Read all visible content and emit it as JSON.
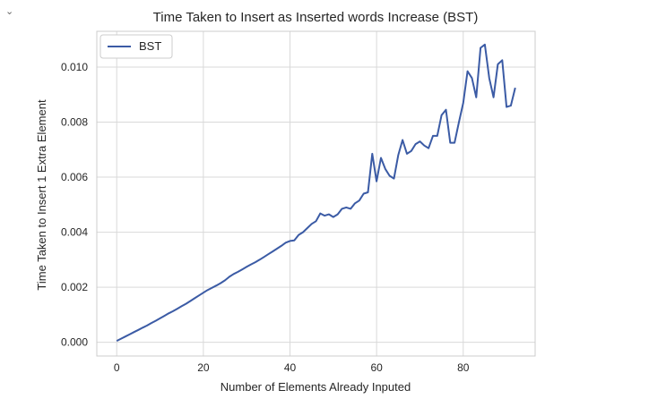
{
  "cell": {
    "collapse_icon": "chevron-down-icon",
    "collapse_glyph": "⌄"
  },
  "chart_data": {
    "type": "line",
    "title": "Time Taken to Insert as Inserted words Increase (BST)",
    "xlabel": "Number of Elements Already Inputed",
    "ylabel": "Time Taken to Insert 1 Extra Element",
    "xlim": [
      -4.6,
      96.6
    ],
    "ylim": [
      -0.0005,
      0.0113
    ],
    "xticks": [
      0,
      20,
      40,
      60,
      80
    ],
    "yticks": [
      0.0,
      0.002,
      0.004,
      0.006,
      0.008,
      0.01
    ],
    "xtick_labels": [
      "0",
      "20",
      "40",
      "60",
      "80"
    ],
    "ytick_labels": [
      "0.000",
      "0.002",
      "0.004",
      "0.006",
      "0.008",
      "0.010"
    ],
    "grid": true,
    "legend": {
      "position": "top-left",
      "entries": [
        "BST"
      ]
    },
    "colors": {
      "line": "#3b5ba5",
      "grid": "#d9d9d9",
      "frame": "#cccccc"
    },
    "series": [
      {
        "name": "BST",
        "x": [
          0,
          1,
          2,
          3,
          4,
          5,
          6,
          7,
          8,
          9,
          10,
          11,
          12,
          13,
          14,
          15,
          16,
          17,
          18,
          19,
          20,
          21,
          22,
          23,
          24,
          25,
          26,
          27,
          28,
          29,
          30,
          31,
          32,
          33,
          34,
          35,
          36,
          37,
          38,
          39,
          40,
          41,
          42,
          43,
          44,
          45,
          46,
          47,
          48,
          49,
          50,
          51,
          52,
          53,
          54,
          55,
          56,
          57,
          58,
          59,
          60,
          61,
          62,
          63,
          64,
          65,
          66,
          67,
          68,
          69,
          70,
          71,
          72,
          73,
          74,
          75,
          76,
          77,
          78,
          79,
          80,
          81,
          82,
          83,
          84,
          85,
          86,
          87,
          88,
          89,
          90,
          91,
          92
        ],
        "y": [
          5e-05,
          0.00013,
          0.00021,
          0.00029,
          0.00037,
          0.00045,
          0.00053,
          0.00061,
          0.0007,
          0.00078,
          0.00087,
          0.00096,
          0.00105,
          0.00113,
          0.00122,
          0.00131,
          0.0014,
          0.0015,
          0.0016,
          0.0017,
          0.0018,
          0.0019,
          0.00198,
          0.00206,
          0.00215,
          0.00225,
          0.00238,
          0.00248,
          0.00256,
          0.00265,
          0.00274,
          0.00283,
          0.00291,
          0.003,
          0.0031,
          0.0032,
          0.0033,
          0.0034,
          0.0035,
          0.00362,
          0.00368,
          0.0037,
          0.0039,
          0.004,
          0.00415,
          0.0043,
          0.0044,
          0.00468,
          0.0046,
          0.00465,
          0.00455,
          0.00465,
          0.00485,
          0.0049,
          0.00485,
          0.00505,
          0.00515,
          0.0054,
          0.00545,
          0.00685,
          0.00585,
          0.0067,
          0.0063,
          0.00605,
          0.00595,
          0.0068,
          0.00735,
          0.00685,
          0.00695,
          0.0072,
          0.0073,
          0.00715,
          0.00705,
          0.0075,
          0.0075,
          0.00825,
          0.00845,
          0.00725,
          0.00725,
          0.008,
          0.0087,
          0.00985,
          0.0096,
          0.0089,
          0.0107,
          0.01082,
          0.0096,
          0.0089,
          0.0101,
          0.01025,
          0.00855,
          0.0086,
          0.00925
        ]
      }
    ]
  }
}
